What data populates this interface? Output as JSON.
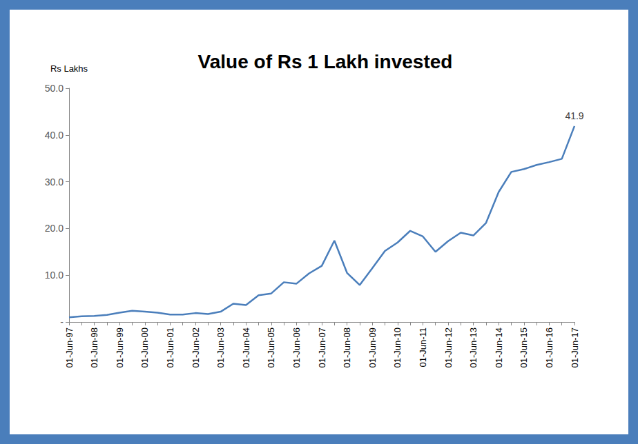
{
  "chart_data": {
    "type": "line",
    "title": "Value of Rs 1 Lakh invested",
    "y_label": "Rs Lakhs",
    "categories": [
      "01-Jun-97",
      null,
      "01-Jun-98",
      null,
      "01-Jun-99",
      null,
      "01-Jun-00",
      null,
      "01-Jun-01",
      null,
      "01-Jun-02",
      null,
      "01-Jun-03",
      null,
      "01-Jun-04",
      null,
      "01-Jun-05",
      null,
      "01-Jun-06",
      null,
      "01-Jun-07",
      null,
      "01-Jun-08",
      null,
      "01-Jun-09",
      null,
      "01-Jun-10",
      null,
      "01-Jun-11",
      null,
      "01-Jun-12",
      null,
      "01-Jun-13",
      null,
      "01-Jun-14",
      null,
      "01-Jun-15",
      null,
      "01-Jun-16",
      null,
      "01-Jun-17"
    ],
    "values": [
      1.0,
      1.2,
      1.3,
      1.5,
      2.0,
      2.4,
      2.2,
      2.0,
      1.6,
      1.6,
      1.9,
      1.7,
      2.2,
      3.9,
      3.6,
      5.7,
      6.1,
      8.5,
      8.2,
      10.4,
      12.0,
      17.4,
      10.5,
      7.9,
      11.5,
      15.2,
      17.0,
      19.5,
      18.3,
      15.0,
      17.3,
      19.1,
      18.5,
      21.2,
      27.8,
      32.1,
      32.7,
      33.6,
      34.2,
      34.9,
      41.9
    ],
    "annotation": "41.9",
    "color": "#4a7ebb",
    "ylim": [
      0,
      50
    ],
    "yticks": [
      {
        "value": 0,
        "label": "-"
      },
      {
        "value": 10,
        "label": "10.0"
      },
      {
        "value": 20,
        "label": "20.0"
      },
      {
        "value": 30,
        "label": "30.0"
      },
      {
        "value": 40,
        "label": "40.0"
      },
      {
        "value": 50,
        "label": "50.0"
      }
    ],
    "grid": false
  }
}
